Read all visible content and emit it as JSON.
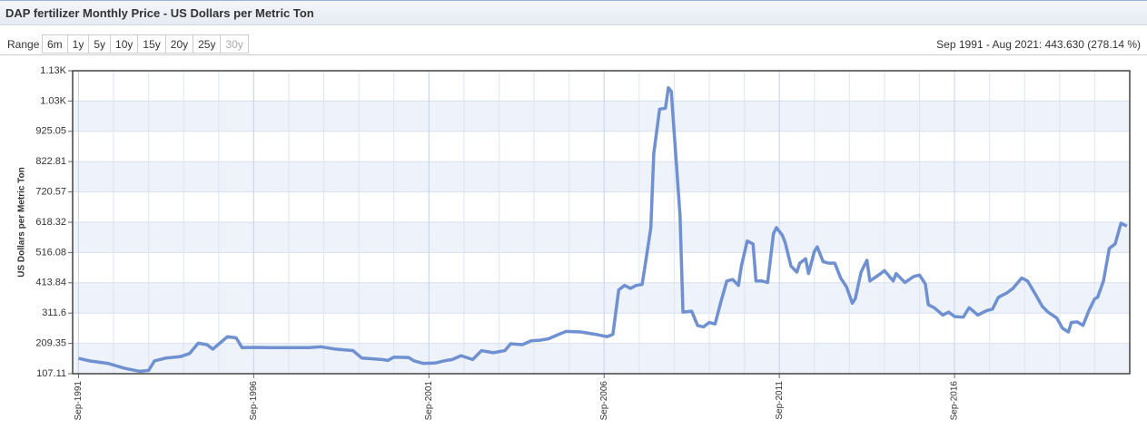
{
  "header": {
    "title": "DAP fertilizer Monthly Price - US Dollars per Metric Ton"
  },
  "range": {
    "label": "Range",
    "buttons": [
      "6m",
      "1y",
      "5y",
      "10y",
      "15y",
      "20y",
      "25y",
      "30y"
    ],
    "disabled": "30y",
    "summary": "Sep 1991 - Aug 2021: 443.630 (278.14 %)"
  },
  "chart_data": {
    "type": "line",
    "ylabel": "US Dollars per Metric Ton",
    "x": [
      "Sep-1991",
      "Jan-1992",
      "Jul-1992",
      "Jan-1993",
      "Jun-1993",
      "Sep-1993",
      "Nov-1993",
      "Mar-1994",
      "Aug-1994",
      "Nov-1994",
      "Feb-1995",
      "May-1995",
      "Jul-1995",
      "Oct-1995",
      "Dec-1995",
      "Mar-1996",
      "May-1996",
      "Sep-1996",
      "Mar-1997",
      "Apr-1998",
      "Aug-1998",
      "Jan-1999",
      "Jul-1999",
      "Oct-1999",
      "May-2000",
      "Jul-2000",
      "Sep-2000",
      "Feb-2001",
      "Apr-2001",
      "Jul-2001",
      "Nov-2001",
      "Mar-2002",
      "May-2002",
      "Aug-2002",
      "Dec-2002",
      "Mar-2003",
      "Jul-2003",
      "Nov-2003",
      "Jan-2004",
      "May-2004",
      "Aug-2004",
      "Nov-2004",
      "Feb-2005",
      "May-2005",
      "Aug-2005",
      "Jan-2006",
      "Jun-2006",
      "Oct-2006",
      "Dec-2006",
      "Feb-2007",
      "Apr-2007",
      "Jun-2007",
      "Aug-2007",
      "Oct-2007",
      "Nov-2007",
      "Jan-2008",
      "Feb-2008",
      "Apr-2008",
      "Jun-2008",
      "Jul-2008",
      "Aug-2008",
      "Sep-2008",
      "Nov-2008",
      "Dec-2008",
      "Mar-2009",
      "May-2009",
      "Jul-2009",
      "Sep-2009",
      "Nov-2009",
      "Jan-2010",
      "Mar-2010",
      "May-2010",
      "Jul-2010",
      "Aug-2010",
      "Oct-2010",
      "Dec-2010",
      "Jan-2011",
      "Mar-2011",
      "May-2011",
      "Jul-2011",
      "Aug-2011",
      "Oct-2011",
      "Nov-2011",
      "Jan-2012",
      "Mar-2012",
      "Apr-2012",
      "Jun-2012",
      "Jul-2012",
      "Sep-2012",
      "Oct-2012",
      "Dec-2012",
      "Feb-2013",
      "Apr-2013",
      "Jun-2013",
      "Aug-2013",
      "Oct-2013",
      "Nov-2013",
      "Jan-2014",
      "Mar-2014",
      "Apr-2014",
      "Jul-2014",
      "Sep-2014",
      "Dec-2014",
      "Jan-2015",
      "Apr-2015",
      "Jul-2015",
      "Sep-2015",
      "Nov-2015",
      "Dec-2015",
      "Feb-2016",
      "May-2016",
      "Jul-2016",
      "Sep-2016",
      "Dec-2016",
      "Feb-2017",
      "May-2017",
      "Aug-2017",
      "Oct-2017",
      "Dec-2017",
      "Mar-2018",
      "May-2018",
      "Aug-2018",
      "Oct-2018",
      "Jan-2019",
      "Mar-2019",
      "May-2019",
      "Aug-2019",
      "Oct-2019",
      "Dec-2019",
      "Jan-2020",
      "Mar-2020",
      "May-2020",
      "Jul-2020",
      "Sep-2020",
      "Oct-2020",
      "Dec-2020",
      "Feb-2021",
      "Apr-2021",
      "Jun-2021",
      "Aug-2021"
    ],
    "series": [
      {
        "name": "DAP fertilizer",
        "color": "#6f91d1",
        "values": [
          159,
          150,
          142,
          125,
          115,
          118,
          150,
          160,
          165,
          175,
          210,
          205,
          190,
          215,
          232,
          228,
          195,
          196,
          195,
          195,
          198,
          190,
          185,
          160,
          155,
          152,
          163,
          162,
          150,
          142,
          143,
          152,
          155,
          168,
          155,
          185,
          178,
          185,
          208,
          205,
          218,
          220,
          225,
          238,
          250,
          248,
          240,
          232,
          240,
          390,
          405,
          395,
          405,
          408,
          470,
          600,
          850,
          1000,
          1003,
          1072,
          1060,
          920,
          640,
          315,
          318,
          270,
          265,
          280,
          275,
          350,
          420,
          425,
          405,
          470,
          555,
          545,
          420,
          420,
          415,
          580,
          600,
          575,
          550,
          470,
          450,
          480,
          495,
          445,
          520,
          535,
          485,
          480,
          480,
          430,
          400,
          345,
          360,
          450,
          490,
          420,
          440,
          455,
          420,
          445,
          415,
          435,
          440,
          410,
          340,
          330,
          305,
          315,
          300,
          298,
          330,
          305,
          320,
          325,
          365,
          380,
          395,
          430,
          420,
          370,
          335,
          315,
          295,
          260,
          248,
          280,
          282,
          270,
          320,
          360,
          365,
          420,
          530,
          545,
          615,
          605
        ]
      }
    ],
    "xlim": [
      "Jul-1991",
      "Sep-2021"
    ],
    "xticks": [
      "Sep-1991",
      "Sep-1996",
      "Sep-2001",
      "Sep-2006",
      "Sep-2011",
      "Sep-2016"
    ],
    "ylim": [
      107.11,
      1129.54
    ],
    "yticks": [
      107.11,
      209.35,
      311.6,
      413.84,
      516.08,
      618.32,
      720.57,
      822.81,
      925.05,
      {
        "value": 1027.3,
        "label": "1.03K"
      },
      {
        "value": 1129.54,
        "label": "1.13K"
      }
    ],
    "grid": true
  }
}
